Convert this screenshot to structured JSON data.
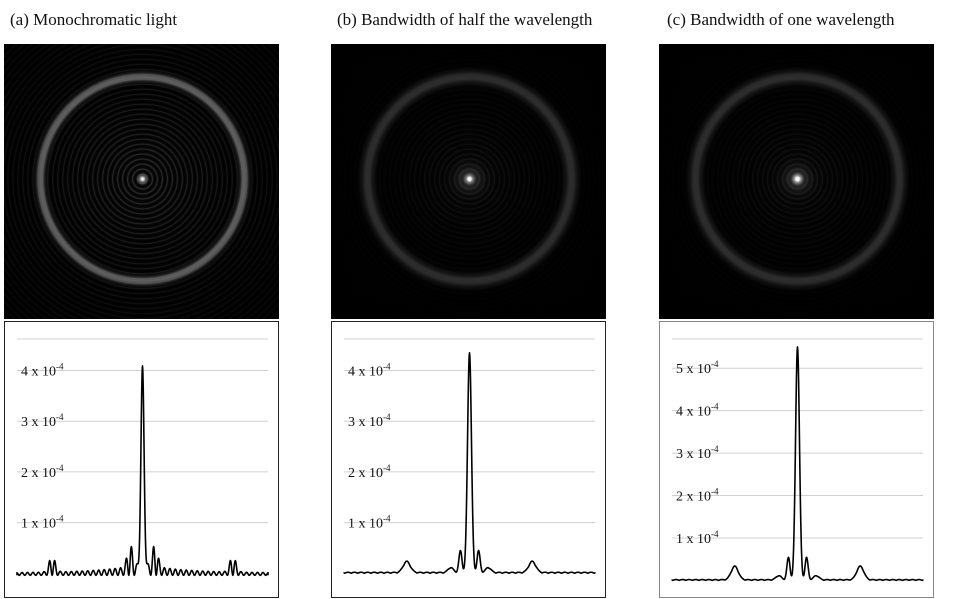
{
  "panels": [
    {
      "id": "a",
      "title": "(a) Monochromatic light"
    },
    {
      "id": "b",
      "title": "(b) Bandwidth of half the wavelength"
    },
    {
      "id": "c",
      "title": "(c) Bandwidth of one wavelength"
    }
  ],
  "chart_data": [
    {
      "type": "line",
      "title": "(a) Monochromatic light",
      "xlabel": "",
      "ylabel": "",
      "ylim": [
        -3.5e-05,
        0.00048
      ],
      "ytick_labels": [
        "1 x 10",
        "2 x 10",
        "3 x 10",
        "4 x 10"
      ],
      "ytick_exponent": "-4",
      "ytick_values": [
        0.0001,
        0.0002,
        0.0003,
        0.0004
      ],
      "grid": true,
      "series": [
        {
          "x": [
            -1.0,
            -0.9,
            -0.8,
            -0.72,
            -0.6,
            -0.5,
            -0.4,
            -0.3,
            -0.2,
            -0.1,
            -0.05,
            0.0,
            0.05,
            0.1,
            0.2,
            0.3,
            0.4,
            0.5,
            0.6,
            0.72,
            0.8,
            0.9,
            1.0
          ],
          "y": [
            0.0,
            5e-06,
            1e-05,
            5e-05,
            1.5e-05,
            1.5e-05,
            1.5e-05,
            2e-05,
            2.5e-05,
            5e-05,
            6.5e-05,
            0.00039,
            6.5e-05,
            5e-05,
            2.5e-05,
            2e-05,
            1.5e-05,
            1.5e-05,
            1.5e-05,
            5e-05,
            1e-05,
            5e-06,
            0.0
          ]
        }
      ]
    },
    {
      "type": "line",
      "title": "(b) Bandwidth of half the wavelength",
      "xlabel": "",
      "ylabel": "",
      "ylim": [
        -3.5e-05,
        0.00048
      ],
      "ytick_labels": [
        "1 x 10",
        "2 x 10",
        "3 x 10",
        "4 x 10"
      ],
      "ytick_exponent": "-4",
      "ytick_values": [
        0.0001,
        0.0002,
        0.0003,
        0.0004
      ],
      "grid": true,
      "series": [
        {
          "x": [
            -1.0,
            -0.7,
            -0.5,
            -0.3,
            -0.1,
            -0.05,
            0.0,
            0.05,
            0.1,
            0.3,
            0.5,
            0.7,
            1.0
          ],
          "y": [
            0.0,
            1e-05,
            2.2e-05,
            3e-06,
            1e-05,
            4.5e-05,
            0.000435,
            4.5e-05,
            1e-05,
            3e-06,
            2.2e-05,
            1e-05,
            0.0
          ]
        }
      ]
    },
    {
      "type": "line",
      "title": "(c) Bandwidth of one wavelength",
      "xlabel": "",
      "ylabel": "",
      "ylim": [
        -2.5e-05,
        0.00059
      ],
      "ytick_labels": [
        "1 x 10",
        "2 x 10",
        "3 x 10",
        "4 x 10",
        "5 x 10"
      ],
      "ytick_exponent": "-4",
      "ytick_values": [
        0.0001,
        0.0002,
        0.0003,
        0.0004,
        0.0005
      ],
      "grid": true,
      "series": [
        {
          "x": [
            -1.0,
            -0.7,
            -0.5,
            -0.3,
            -0.1,
            -0.05,
            0.0,
            0.05,
            0.1,
            0.3,
            0.5,
            0.7,
            1.0
          ],
          "y": [
            0.0,
            1e-05,
            3.2e-05,
            4e-06,
            1.2e-05,
            5.5e-05,
            0.00055,
            5.5e-05,
            1.2e-05,
            4e-06,
            3.2e-05,
            1e-05,
            0.0
          ]
        }
      ]
    }
  ]
}
